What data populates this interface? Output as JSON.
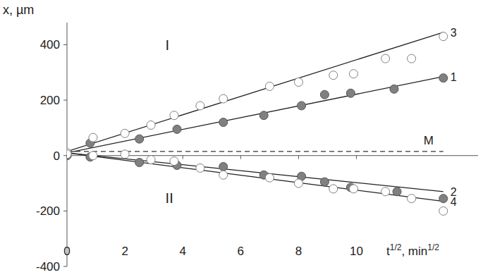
{
  "chart_data": {
    "type": "scatter",
    "ylabel": "x, µm",
    "xlabel": [
      "t",
      "1/2",
      ", min",
      "1/2"
    ],
    "xlim": [
      0,
      14.2
    ],
    "ylim": [
      -400,
      480
    ],
    "xticks": [
      0,
      2,
      4,
      6,
      8,
      10
    ],
    "yticks": [
      -400,
      -200,
      0,
      200,
      400
    ],
    "grid": false,
    "fit_x": [
      0,
      13
    ],
    "reference_line": {
      "label": "M",
      "value": 15
    },
    "annotations": [
      {
        "text": "I",
        "x": 3.4,
        "y": 380
      },
      {
        "text": "II",
        "x": 3.4,
        "y": -170
      }
    ],
    "series": [
      {
        "name": "1",
        "marker": "filled",
        "color": "#808080",
        "x": [
          0,
          0.8,
          2.5,
          3.8,
          5.4,
          6.8,
          8.1,
          8.9,
          9.8,
          11.3,
          13.0
        ],
        "values": [
          0,
          45,
          60,
          95,
          120,
          145,
          180,
          220,
          225,
          240,
          280
        ],
        "fit": [
          10,
          285
        ]
      },
      {
        "name": "2",
        "marker": "filled",
        "color": "#808080",
        "x": [
          0,
          0.8,
          2.5,
          3.8,
          5.4,
          6.8,
          8.1,
          8.9,
          9.8,
          11.4,
          13.0
        ],
        "values": [
          0,
          -5,
          -25,
          -35,
          -40,
          -70,
          -75,
          -95,
          -115,
          -130,
          -155
        ],
        "fit": [
          10,
          -130
        ]
      },
      {
        "name": "3",
        "marker": "open",
        "color": "#808080",
        "x": [
          0,
          0.9,
          2,
          2.9,
          3.7,
          4.6,
          5.4,
          7.0,
          8.0,
          9.2,
          9.9,
          11.0,
          11.9,
          13.0
        ],
        "values": [
          10,
          65,
          80,
          110,
          145,
          180,
          205,
          250,
          265,
          290,
          295,
          350,
          350,
          430
        ],
        "fit": [
          15,
          445
        ]
      },
      {
        "name": "4",
        "marker": "open",
        "color": "#808080",
        "x": [
          0,
          0.9,
          2,
          2.9,
          3.7,
          4.6,
          5.4,
          7.0,
          8.0,
          9.2,
          9.9,
          11.0,
          11.9,
          13.0
        ],
        "values": [
          5,
          0,
          5,
          -15,
          -20,
          -45,
          -70,
          -80,
          -100,
          -120,
          -120,
          -130,
          -155,
          -200
        ],
        "fit": [
          10,
          -165
        ]
      }
    ]
  }
}
